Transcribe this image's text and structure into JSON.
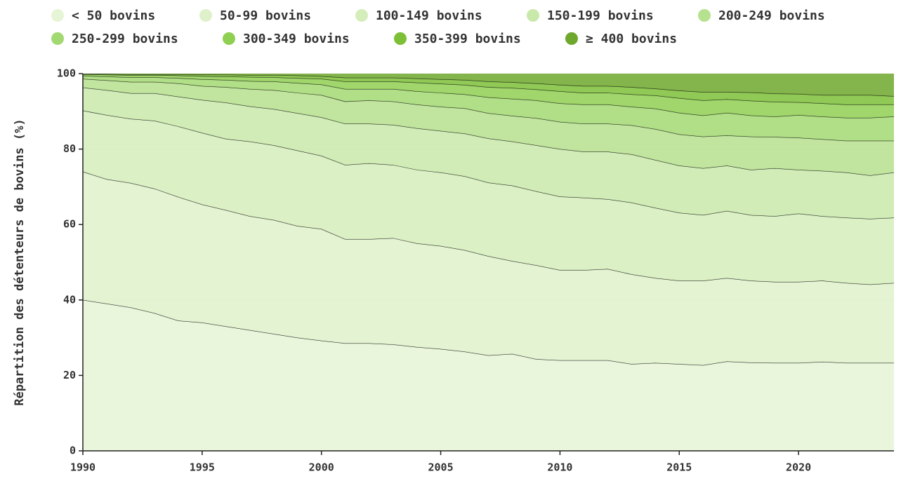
{
  "chart_data": {
    "type": "stacked-area",
    "y_label": "Répartition des détenteurs de bovins (%)",
    "x": [
      1990,
      1991,
      1992,
      1993,
      1994,
      1995,
      1996,
      1997,
      1998,
      1999,
      2000,
      2001,
      2002,
      2003,
      2004,
      2005,
      2006,
      2007,
      2008,
      2009,
      2010,
      2011,
      2012,
      2013,
      2014,
      2015,
      2016,
      2017,
      2018,
      2019,
      2020,
      2021,
      2022,
      2023,
      2024
    ],
    "xlim": [
      1990,
      2024
    ],
    "xticks": [
      1990,
      1995,
      2000,
      2005,
      2010,
      2015,
      2020
    ],
    "ylim": [
      0,
      100
    ],
    "yticks": [
      0,
      20,
      40,
      60,
      80,
      100
    ],
    "grid": true,
    "series": [
      {
        "name": "< 50 bovins",
        "color": "#e6f5d6",
        "values": [
          40,
          39,
          38,
          36.5,
          34.5,
          34,
          33,
          32,
          31,
          30,
          29.2,
          28.5,
          28.5,
          28.2,
          27.5,
          27,
          26.3,
          25.3,
          25.7,
          24.3,
          24,
          24,
          24,
          23,
          23.3,
          23,
          22.7,
          23.7,
          23.4,
          23.3,
          23.3,
          23.6,
          23.3,
          23.3,
          23.3
        ]
      },
      {
        "name": "50-99 bovins",
        "color": "#dff1ca",
        "values": [
          34,
          33,
          33,
          33,
          32.8,
          31.3,
          30.8,
          30.2,
          30.2,
          29.6,
          29.6,
          27.6,
          27.6,
          28.2,
          27.5,
          27.3,
          26.9,
          26.3,
          24.6,
          24.9,
          23.9,
          23.9,
          24.2,
          23.8,
          22.5,
          22.1,
          22.4,
          22.1,
          21.7,
          21.5,
          21.5,
          21.5,
          21.2,
          20.8,
          21.2
        ]
      },
      {
        "name": "100-149 bovins",
        "color": "#d5edbb",
        "values": [
          16.2,
          17,
          17,
          18,
          18.7,
          19,
          18.9,
          19.8,
          19.8,
          20,
          19.4,
          19.7,
          20.1,
          19.4,
          19.5,
          19.5,
          19.6,
          19.5,
          20,
          19.6,
          19.5,
          19.2,
          18.5,
          19,
          18.6,
          18,
          17.4,
          17.8,
          17.4,
          17.4,
          18.1,
          17.1,
          17.3,
          17.4,
          17.3
        ]
      },
      {
        "name": "150-199 bovins",
        "color": "#c9e9aa",
        "values": [
          6.1,
          6.6,
          6.8,
          7.3,
          7.9,
          8.7,
          9.6,
          9.3,
          9.6,
          9.9,
          10.2,
          10.9,
          10.5,
          10.6,
          11,
          11,
          11.3,
          11.7,
          11.7,
          12.2,
          12.6,
          12.2,
          12.6,
          12.8,
          12.7,
          12.5,
          12.4,
          12,
          12,
          12.7,
          11.6,
          12,
          12,
          11.5,
          12
        ]
      },
      {
        "name": "200-249 bovins",
        "color": "#b6e18e",
        "values": [
          2.3,
          2.6,
          3,
          3,
          3.5,
          3.7,
          4.1,
          4.6,
          5,
          5.4,
          5.9,
          5.9,
          6.2,
          6.2,
          6.3,
          6.4,
          6.7,
          6.7,
          6.8,
          7.2,
          7.2,
          7.4,
          7.4,
          7.7,
          8.2,
          8.3,
          8.4,
          8,
          8.8,
          8.3,
          8.5,
          8.4,
          8.4,
          9.2,
          8.4
        ]
      },
      {
        "name": "250-299 bovins",
        "color": "#a3d972",
        "values": [
          0.8,
          1,
          1.2,
          1.2,
          1.4,
          1.8,
          1.9,
          2.1,
          2.3,
          2.6,
          2.8,
          3.3,
          3,
          3.3,
          3.5,
          3.7,
          3.7,
          4.2,
          4.5,
          4.7,
          4.9,
          5.1,
          5.1,
          4.9,
          5.4,
          5.7,
          5.6,
          6,
          5.6,
          5.4,
          6,
          6,
          6.1,
          6.1,
          6.4
        ]
      },
      {
        "name": "300-349 bovins",
        "color": "#8fcf52",
        "values": [
          0.4,
          0.5,
          0.6,
          0.6,
          0.7,
          0.8,
          0.9,
          1.1,
          1.1,
          1.3,
          1.5,
          2,
          2,
          2,
          2.3,
          2.4,
          2.5,
          2.7,
          2.9,
          2.9,
          3.2,
          3.1,
          3.1,
          3.3,
          3.5,
          3.9,
          4,
          3.6,
          3.9,
          3.9,
          3.4,
          3.5,
          3.5,
          3.5,
          3.2
        ]
      },
      {
        "name": "350-399 bovins",
        "color": "#7dbf37",
        "values": [
          0.1,
          0.2,
          0.2,
          0.2,
          0.3,
          0.4,
          0.5,
          0.5,
          0.6,
          0.7,
          0.7,
          1,
          1,
          1,
          1.1,
          1.2,
          1.3,
          1.5,
          1.5,
          1.6,
          1.7,
          1.8,
          1.8,
          1.9,
          1.8,
          2,
          2.2,
          1.9,
          2.2,
          2.2,
          2.2,
          2.2,
          2.5,
          2.5,
          2.2
        ]
      },
      {
        "name": "≥ 400 bovins",
        "color": "#6ea82d",
        "values": [
          0.1,
          0.1,
          0.2,
          0.2,
          0.2,
          0.3,
          0.3,
          0.4,
          0.4,
          0.5,
          0.7,
          1.1,
          1.1,
          1.1,
          1.3,
          1.5,
          1.7,
          2.1,
          2.3,
          2.6,
          3,
          3.3,
          3.3,
          3.6,
          4,
          4.5,
          4.9,
          4.9,
          5,
          5.3,
          5.4,
          5.7,
          5.7,
          5.7,
          6
        ]
      }
    ]
  }
}
